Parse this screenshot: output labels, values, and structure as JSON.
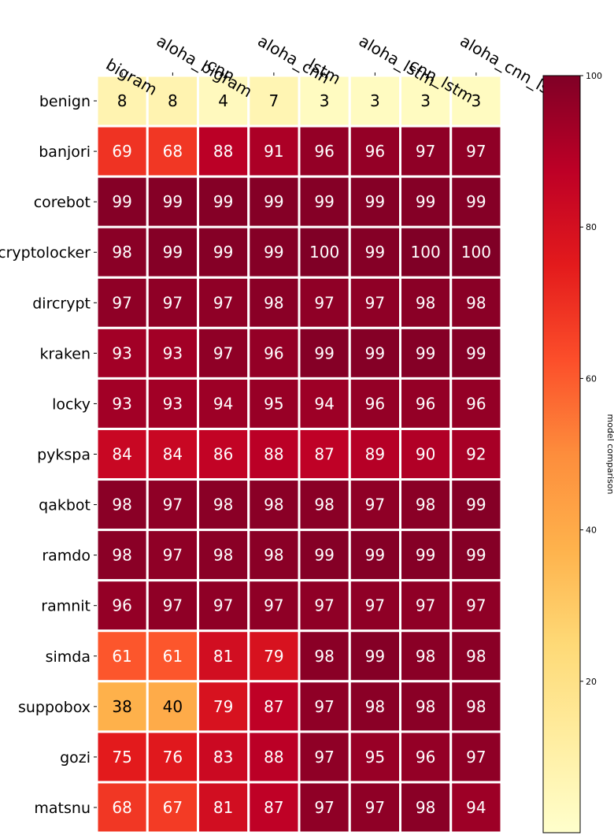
{
  "chart_data": {
    "type": "heatmap",
    "columns": [
      "bigram",
      "aloha_bigram",
      "cnn",
      "aloha_cnn",
      "lstm",
      "aloha_lstm",
      "cnn_lstm",
      "aloha_cnn_lstm"
    ],
    "rows": [
      "benign",
      "banjori",
      "corebot",
      "cryptolocker",
      "dircrypt",
      "kraken",
      "locky",
      "pykspa",
      "qakbot",
      "ramdo",
      "ramnit",
      "simda",
      "suppobox",
      "gozi",
      "matsnu"
    ],
    "values": [
      [
        8,
        8,
        4,
        7,
        3,
        3,
        3,
        3
      ],
      [
        69,
        68,
        88,
        91,
        96,
        96,
        97,
        97
      ],
      [
        99,
        99,
        99,
        99,
        99,
        99,
        99,
        99
      ],
      [
        98,
        99,
        99,
        99,
        100,
        99,
        100,
        100
      ],
      [
        97,
        97,
        97,
        98,
        97,
        97,
        98,
        98
      ],
      [
        93,
        93,
        97,
        96,
        99,
        99,
        99,
        99
      ],
      [
        93,
        93,
        94,
        95,
        94,
        96,
        96,
        96
      ],
      [
        84,
        84,
        86,
        88,
        87,
        89,
        90,
        92
      ],
      [
        98,
        97,
        98,
        98,
        98,
        97,
        98,
        99
      ],
      [
        98,
        97,
        98,
        98,
        99,
        99,
        99,
        99
      ],
      [
        96,
        97,
        97,
        97,
        97,
        97,
        97,
        97
      ],
      [
        61,
        61,
        81,
        79,
        98,
        99,
        98,
        98
      ],
      [
        38,
        40,
        79,
        87,
        97,
        98,
        98,
        98
      ],
      [
        75,
        76,
        83,
        88,
        97,
        95,
        96,
        97
      ],
      [
        68,
        67,
        81,
        87,
        97,
        97,
        98,
        94
      ]
    ],
    "colorbar": {
      "label": "model comparison",
      "range": [
        0,
        100
      ],
      "ticks": [
        20,
        40,
        60,
        80,
        100
      ],
      "colormap": "YlOrRd"
    },
    "cell_text_colors": {
      "light": "#ffffff",
      "dark": "#000000"
    },
    "grid_color": "#ffffff"
  }
}
